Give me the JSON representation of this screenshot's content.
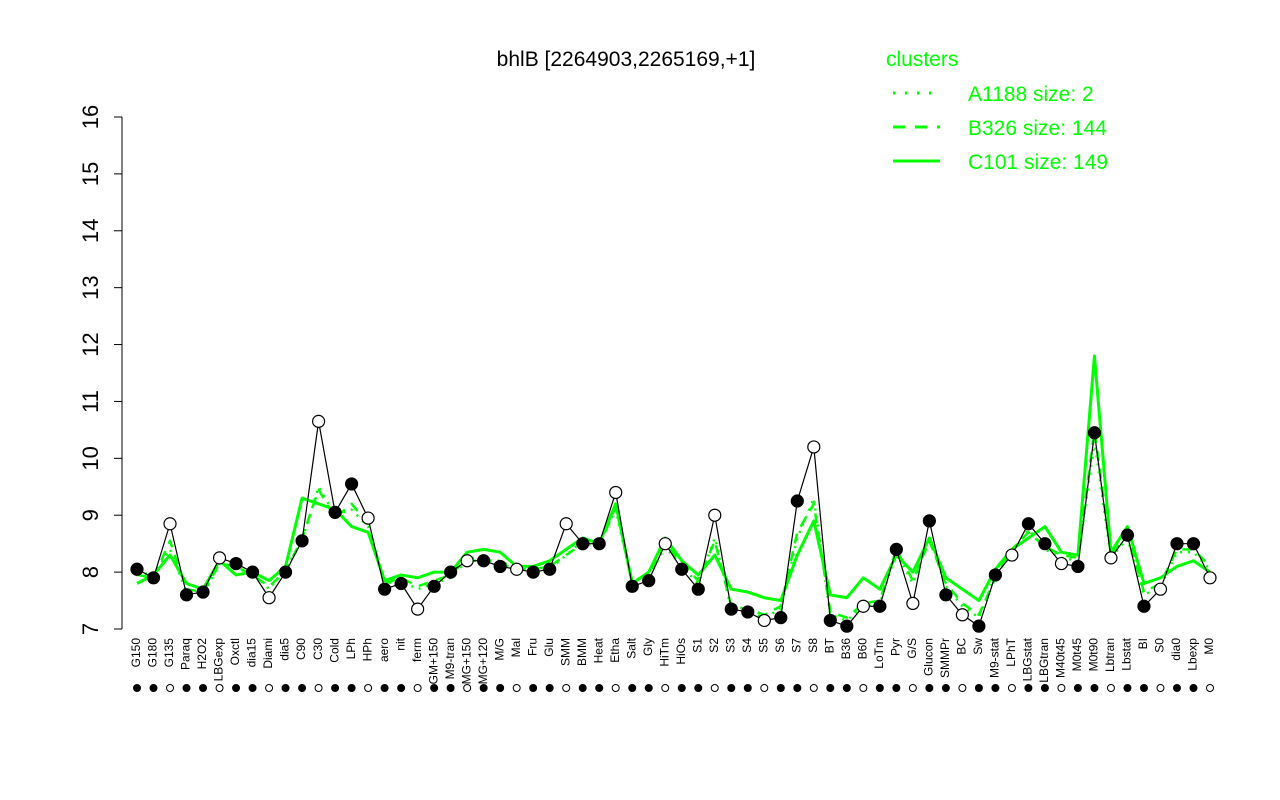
{
  "chart_data": {
    "type": "line",
    "title": "bhlB [2264903,2265169,+1]",
    "ylim": [
      7,
      16
    ],
    "y_ticks": [
      7,
      8,
      9,
      10,
      11,
      12,
      13,
      14,
      15,
      16
    ],
    "x_tick_labels": [
      "G150",
      "G180",
      "G135",
      "Paraq",
      "H2O2",
      "LBGexp",
      "Oxctl",
      "dia15",
      "Diami",
      "dia5",
      "C90",
      "C30",
      "Cold",
      "LPh",
      "HPh",
      "aero",
      "nit",
      "ferm",
      "GM+150",
      "M9-tran",
      "MG+150",
      "MG+120",
      "M/G",
      "Mal",
      "Fru",
      "Glu",
      "SMM",
      "BMM",
      "Heat",
      "Etha",
      "Salt",
      "Gly",
      "HiTm",
      "HiOs",
      "S1",
      "S2",
      "S3",
      "S4",
      "S5",
      "S6",
      "S7",
      "S8",
      "BT",
      "B36",
      "B60",
      "LoTm",
      "Pyr",
      "G/S",
      "Glucon",
      "SMMPr",
      "BC",
      "Sw",
      "M9-stat",
      "LPhT",
      "LBGstat",
      "LBGtran",
      "M40t45",
      "M0t45",
      "M0t90",
      "Lbtran",
      "Lbstat",
      "BI",
      "S0",
      "dia0",
      "Lbexp",
      "M0"
    ],
    "series": [
      {
        "name": "A1188 size: 2",
        "line_style": "dotted",
        "color": "#00ff00",
        "values": [
          8.0,
          7.95,
          8.4,
          7.65,
          7.6,
          8.15,
          8.05,
          8.0,
          7.7,
          8.05,
          8.55,
          9.5,
          9.0,
          9.1,
          8.8,
          7.8,
          7.85,
          7.7,
          7.8,
          7.9,
          8.2,
          8.2,
          8.2,
          8.05,
          8.0,
          8.05,
          8.3,
          8.55,
          8.5,
          9.1,
          7.8,
          7.9,
          8.45,
          8.1,
          7.8,
          8.6,
          7.35,
          7.3,
          7.2,
          7.35,
          8.6,
          9.3,
          7.25,
          7.15,
          7.4,
          7.45,
          8.35,
          7.8,
          8.6,
          7.75,
          7.4,
          7.2,
          7.95,
          8.35,
          8.75,
          8.4,
          8.25,
          8.2,
          10.3,
          8.25,
          8.6,
          7.6,
          7.75,
          8.35,
          8.35,
          8.05
        ]
      },
      {
        "name": "B326 size: 144",
        "line_style": "dashed",
        "color": "#00ff00",
        "values": [
          7.95,
          7.9,
          8.55,
          7.7,
          7.65,
          8.15,
          8.1,
          7.95,
          7.75,
          8.0,
          8.6,
          9.45,
          8.95,
          9.2,
          8.85,
          7.8,
          7.9,
          7.75,
          7.85,
          7.95,
          8.25,
          8.25,
          8.15,
          8.05,
          8.05,
          8.1,
          8.3,
          8.5,
          8.45,
          9.15,
          7.85,
          7.95,
          8.5,
          8.15,
          7.85,
          8.55,
          7.4,
          7.35,
          7.25,
          7.4,
          8.7,
          9.2,
          7.3,
          7.2,
          7.45,
          7.5,
          8.4,
          7.85,
          8.55,
          7.8,
          7.45,
          7.25,
          7.9,
          8.4,
          8.7,
          8.45,
          8.3,
          8.25,
          10.5,
          8.3,
          8.65,
          7.65,
          7.8,
          8.4,
          8.4,
          8.1
        ]
      },
      {
        "name": "C101 size: 149",
        "line_style": "solid",
        "color": "#00ff00",
        "values": [
          7.8,
          7.95,
          8.3,
          7.8,
          7.7,
          8.2,
          7.95,
          8.0,
          7.85,
          8.1,
          9.3,
          9.2,
          9.1,
          8.8,
          8.7,
          7.85,
          7.95,
          7.9,
          8.0,
          8.0,
          8.35,
          8.4,
          8.35,
          8.1,
          8.1,
          8.2,
          8.4,
          8.6,
          8.5,
          9.2,
          7.8,
          8.0,
          8.6,
          8.2,
          7.95,
          8.3,
          7.7,
          7.65,
          7.55,
          7.5,
          8.3,
          8.9,
          7.6,
          7.55,
          7.9,
          7.7,
          8.3,
          8.0,
          8.6,
          7.9,
          7.7,
          7.5,
          8.05,
          8.4,
          8.6,
          8.8,
          8.35,
          8.3,
          11.8,
          8.35,
          8.8,
          7.8,
          7.9,
          8.1,
          8.2,
          8.0
        ]
      }
    ],
    "points": [
      8.05,
      7.9,
      8.85,
      7.6,
      7.65,
      8.25,
      8.15,
      8.0,
      7.55,
      8.0,
      8.55,
      10.65,
      9.05,
      9.55,
      8.95,
      7.7,
      7.8,
      7.35,
      7.75,
      8.0,
      8.2,
      8.2,
      8.1,
      8.05,
      8.0,
      8.05,
      8.85,
      8.5,
      8.5,
      9.4,
      7.75,
      7.85,
      8.5,
      8.05,
      7.7,
      9.0,
      7.35,
      7.3,
      7.15,
      7.2,
      9.25,
      10.2,
      7.15,
      7.05,
      7.4,
      7.4,
      8.4,
      7.45,
      8.9,
      7.6,
      7.25,
      7.05,
      7.95,
      8.3,
      8.85,
      8.5,
      8.15,
      8.1,
      10.45,
      8.25,
      8.65,
      7.4,
      7.7,
      8.5,
      8.5,
      7.9
    ],
    "legend": {
      "title": "clusters",
      "placement": "top-right"
    }
  }
}
